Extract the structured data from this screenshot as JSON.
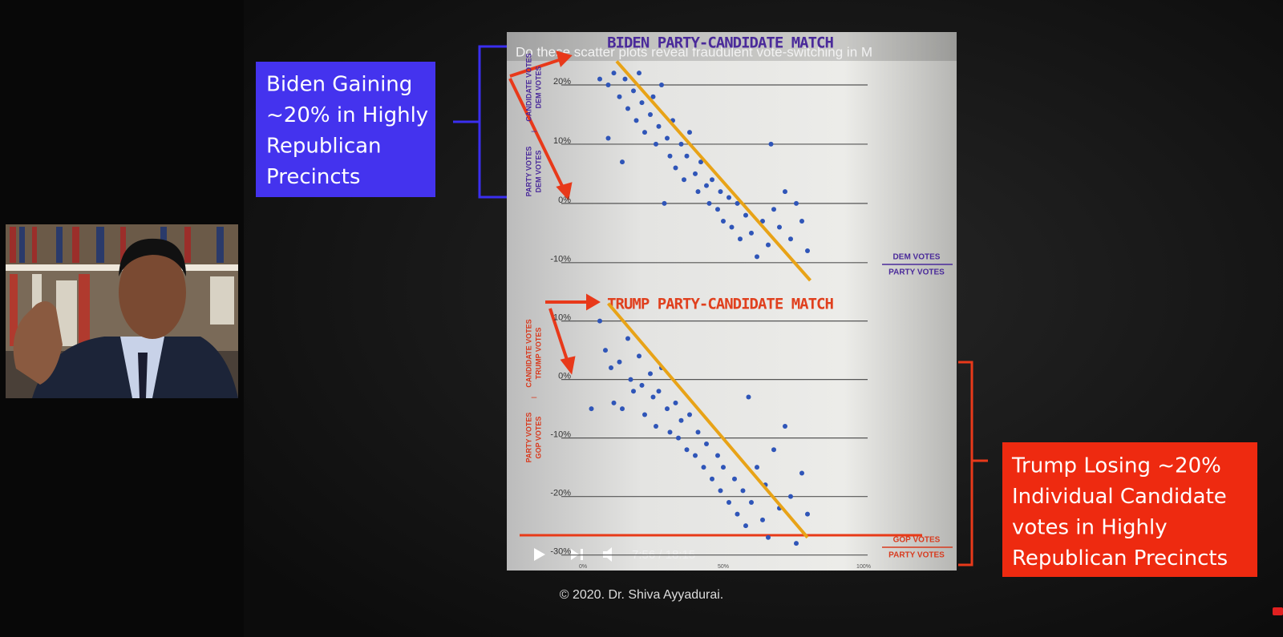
{
  "video_title": "Do these scatter plots reveal fraudulent vote-switching in M",
  "player_time": "7:56 / 18:15",
  "callout_left": [
    "Biden Gaining",
    "~20% in Highly",
    "Republican",
    "Precincts"
  ],
  "callout_right": [
    "Trump Losing ~20%",
    "Individual Candidate",
    "votes in Highly",
    "Republican Precincts"
  ],
  "copyright": "© 2020. Dr. Shiva Ayyadurai.",
  "chart_data": [
    {
      "type": "scatter",
      "title": "BIDEN PARTY-CANDIDATE MATCH",
      "ylabel": {
        "minuend": [
          "DEM VOTES",
          "CANDIDATE VOTES"
        ],
        "operator": "–",
        "subtrahend": [
          "DEM VOTES",
          "PARTY VOTES"
        ]
      },
      "xlabel": [
        "DEM VOTES",
        "PARTY VOTES"
      ],
      "color": "#2f55b8",
      "label_color": "#4a2a9a",
      "x": [
        6,
        9,
        11,
        13,
        15,
        16,
        18,
        19,
        20,
        21,
        22,
        24,
        25,
        26,
        27,
        28,
        30,
        31,
        32,
        33,
        35,
        36,
        37,
        38,
        40,
        41,
        42,
        44,
        45,
        46,
        48,
        49,
        50,
        52,
        53,
        55,
        56,
        58,
        60,
        62,
        64,
        66,
        68,
        70,
        72,
        74,
        76,
        78,
        80,
        29,
        9,
        14,
        67
      ],
      "y": [
        21,
        20,
        22,
        18,
        21,
        16,
        19,
        14,
        22,
        17,
        12,
        15,
        18,
        10,
        13,
        20,
        11,
        8,
        14,
        6,
        10,
        4,
        8,
        12,
        5,
        2,
        7,
        3,
        0,
        4,
        -1,
        2,
        -3,
        1,
        -4,
        0,
        -6,
        -2,
        -5,
        -9,
        -3,
        -7,
        -1,
        -4,
        2,
        -6,
        0,
        -3,
        -8,
        0,
        11,
        7,
        10
      ],
      "trendline": {
        "x": [
          12,
          81
        ],
        "y": [
          24,
          -13
        ],
        "color": "#e8a317"
      },
      "xlim": [
        0,
        100
      ],
      "ylim": [
        -13,
        25
      ],
      "yticks": [
        {
          "value": 20,
          "label": "20%"
        },
        {
          "value": 10,
          "label": "10%"
        },
        {
          "value": 0,
          "label": "0%"
        },
        {
          "value": -10,
          "label": "-10%"
        }
      ],
      "grid": true
    },
    {
      "type": "scatter",
      "title": "TRUMP PARTY-CANDIDATE MATCH",
      "ylabel": {
        "minuend": [
          "TRUMP VOTES",
          "CANDIDATE VOTES"
        ],
        "operator": "–",
        "subtrahend": [
          "GOP VOTES",
          "PARTY VOTES"
        ]
      },
      "xlabel": [
        "GOP VOTES",
        "PARTY VOTES"
      ],
      "color": "#2f55b8",
      "label_color": "#d83a1e",
      "x": [
        6,
        8,
        10,
        11,
        13,
        14,
        16,
        17,
        18,
        20,
        21,
        22,
        24,
        25,
        26,
        27,
        28,
        30,
        31,
        33,
        34,
        35,
        37,
        38,
        40,
        41,
        43,
        44,
        46,
        48,
        49,
        50,
        52,
        54,
        55,
        57,
        58,
        60,
        62,
        64,
        65,
        66,
        68,
        70,
        72,
        74,
        76,
        78,
        80,
        3,
        59
      ],
      "y": [
        10,
        5,
        2,
        -4,
        3,
        -5,
        7,
        0,
        -2,
        4,
        -1,
        -6,
        1,
        -3,
        -8,
        -2,
        2,
        -5,
        -9,
        -4,
        -10,
        -7,
        -12,
        -6,
        -13,
        -9,
        -15,
        -11,
        -17,
        -13,
        -19,
        -15,
        -21,
        -17,
        -23,
        -19,
        -25,
        -21,
        -15,
        -24,
        -18,
        -27,
        -12,
        -22,
        -8,
        -20,
        -28,
        -16,
        -23,
        -5,
        -3
      ],
      "trendline": {
        "x": [
          9,
          80
        ],
        "y": [
          13,
          -27
        ],
        "color": "#e8a317"
      },
      "xlim": [
        0,
        100
      ],
      "ylim": [
        -31,
        12
      ],
      "xticks": [
        {
          "value": 0,
          "label": "0%"
        },
        {
          "value": 50,
          "label": "50%"
        },
        {
          "value": 100,
          "label": "100%"
        }
      ],
      "yticks": [
        {
          "value": 10,
          "label": "10%"
        },
        {
          "value": 0,
          "label": "0%"
        },
        {
          "value": -10,
          "label": "-10%"
        },
        {
          "value": -20,
          "label": "-20%"
        },
        {
          "value": -30,
          "label": "-30%"
        }
      ],
      "grid": true
    }
  ]
}
